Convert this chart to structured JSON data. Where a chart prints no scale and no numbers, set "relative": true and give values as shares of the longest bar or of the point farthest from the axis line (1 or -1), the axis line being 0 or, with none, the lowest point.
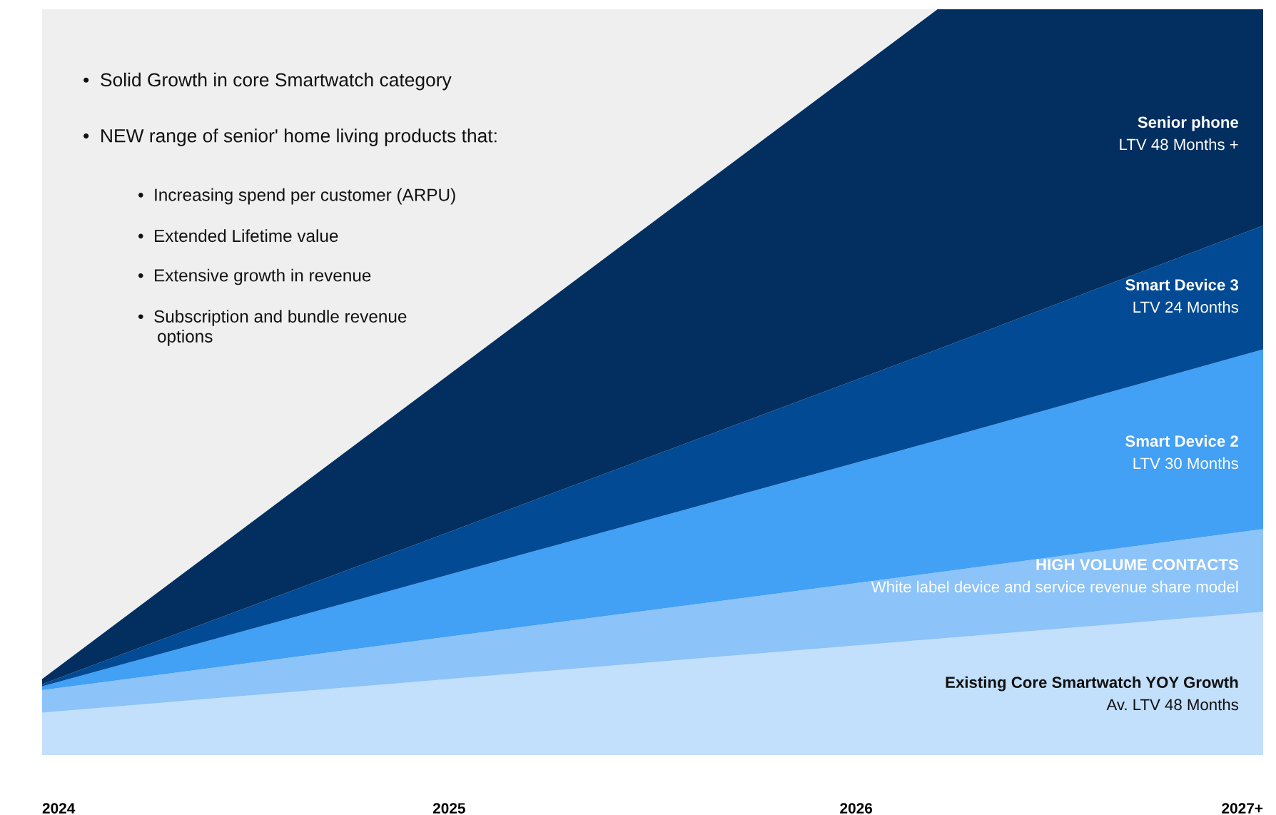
{
  "chart_data": {
    "type": "area",
    "stacked": true,
    "relative": true,
    "legend": false,
    "grid": false,
    "tick_labels": "x",
    "x": [
      2024,
      2026.2,
      2027
    ],
    "xlim": [
      2024,
      2027
    ],
    "xticks": [
      2024,
      2025,
      2026,
      {
        "value": 2027,
        "label": "2027+"
      }
    ],
    "series": [
      {
        "name": "Existing Core Smartwatch YOY Growth\nAv. LTV 48 Months",
        "color": "#c2dffb",
        "values": [
          0.057,
          0.156,
          0.192
        ]
      },
      {
        "name": "HIGH VOLUME CONTACTS\nWhite label device and service revenue share model",
        "color": "#8cc3f8",
        "values": [
          0.03,
          0.089,
          0.111
        ]
      },
      {
        "name": "Smart Device 2\nLTV 30 Months",
        "color": "#42a0f5",
        "values": [
          0.005,
          0.177,
          0.241
        ]
      },
      {
        "name": "Smart Device 3\nLTV 24 Months",
        "color": "#024a94",
        "values": [
          0.003,
          0.122,
          0.166
        ]
      },
      {
        "name": "Senior phone\nLTV 48 Months +",
        "color": "#022f5f",
        "values": [
          0.007,
          0.456,
          0.29
        ]
      }
    ],
    "annotations": [
      "•  Solid Growth in core Smartwatch category",
      "•  NEW range of senior' home living products that:",
      "•  Increasing spend per customer (ARPU)",
      "•  Extended Lifetime value",
      "•  Extensive growth in revenue",
      "•  Subscription and bundle revenue\n    options"
    ]
  }
}
